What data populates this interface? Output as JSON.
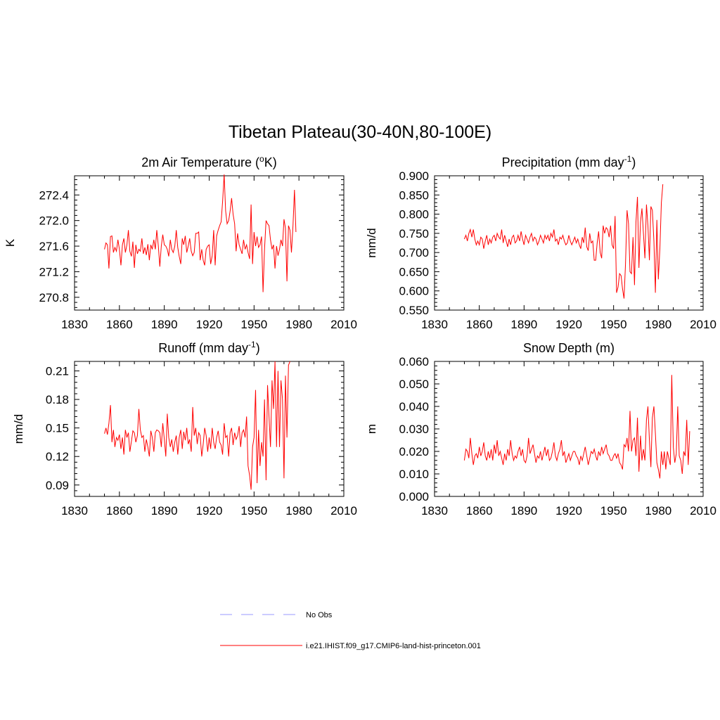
{
  "figure": {
    "title": "Tibetan Plateau(30-40N,80-100E)"
  },
  "legend": {
    "entries": [
      {
        "label": "No Obs",
        "color": "#9999ff",
        "dash": true
      },
      {
        "label": "i.e21.IHIST.f09_g17.CMIP6-land-hist-princeton.001",
        "color": "#ff0000",
        "dash": false
      }
    ]
  },
  "chart_data": [
    {
      "type": "line",
      "title": "2m Air Temperature (°K)",
      "title_parts": [
        "2m Air Temperature (",
        "o",
        "K)"
      ],
      "ylabel": "K",
      "xlim": [
        1830,
        2010
      ],
      "ylim": [
        270.6,
        272.7
      ],
      "xticks": [
        "1830",
        "1860",
        "1890",
        "1920",
        "1950",
        "1980",
        "2010"
      ],
      "yticks": [
        "270.8",
        "271.2",
        "271.6",
        "272.0",
        "272.4"
      ],
      "series": [
        {
          "color": "#ff0000",
          "x_start": 1850,
          "values": [
            271.55,
            271.65,
            271.62,
            271.25,
            271.75,
            271.76,
            271.5,
            271.58,
            271.52,
            271.7,
            271.55,
            271.3,
            271.62,
            271.72,
            271.5,
            271.62,
            271.85,
            271.52,
            271.44,
            271.67,
            271.26,
            271.62,
            271.48,
            271.55,
            271.52,
            271.72,
            271.48,
            271.58,
            271.46,
            271.63,
            271.38,
            271.62,
            271.55,
            271.7,
            271.55,
            271.85,
            271.6,
            271.28,
            271.6,
            271.78,
            271.62,
            271.6,
            271.55,
            271.44,
            271.7,
            271.55,
            271.5,
            271.6,
            271.85,
            271.58,
            271.44,
            271.32,
            271.72,
            271.62,
            271.76,
            271.5,
            271.6,
            271.72,
            271.52,
            271.45,
            271.5,
            271.8,
            271.8,
            271.82,
            271.38,
            271.55,
            271.38,
            271.3,
            271.55,
            271.6,
            271.62,
            271.32,
            271.45,
            271.85,
            271.3,
            271.76,
            271.85,
            271.92,
            271.98,
            272.3,
            272.72,
            272.15,
            271.95,
            272.0,
            272.15,
            272.35,
            272.1,
            271.95,
            271.52,
            271.8,
            271.62,
            271.55,
            271.48,
            271.7,
            271.55,
            271.62,
            271.5,
            271.4,
            272.25,
            271.32,
            271.82,
            271.6,
            271.75,
            271.58,
            271.62,
            271.75,
            270.88,
            271.55,
            272.0,
            271.95,
            271.92,
            271.7,
            271.55,
            271.62,
            271.25,
            271.6,
            271.45,
            271.55,
            271.7,
            271.6,
            272.02,
            271.88,
            271.05,
            271.92,
            271.85,
            271.5,
            271.92,
            272.48,
            271.82
          ]
        }
      ]
    },
    {
      "type": "line",
      "title": "Precipitation (mm day-1)",
      "title_parts": [
        "Precipitation (mm day",
        "-1",
        ")"
      ],
      "ylabel": "mm/d",
      "xlim": [
        1830,
        2010
      ],
      "ylim": [
        0.55,
        0.9
      ],
      "xticks": [
        "1830",
        "1860",
        "1890",
        "1920",
        "1950",
        "1980",
        "2010"
      ],
      "yticks": [
        "0.550",
        "0.600",
        "0.650",
        "0.700",
        "0.750",
        "0.800",
        "0.850",
        "0.900"
      ],
      "series": [
        {
          "color": "#ff0000",
          "x_start": 1850,
          "values": [
            0.735,
            0.745,
            0.73,
            0.75,
            0.76,
            0.74,
            0.76,
            0.735,
            0.72,
            0.73,
            0.72,
            0.74,
            0.735,
            0.71,
            0.73,
            0.745,
            0.72,
            0.735,
            0.725,
            0.74,
            0.745,
            0.73,
            0.75,
            0.74,
            0.735,
            0.76,
            0.725,
            0.745,
            0.73,
            0.715,
            0.735,
            0.72,
            0.74,
            0.745,
            0.725,
            0.73,
            0.745,
            0.73,
            0.755,
            0.735,
            0.72,
            0.745,
            0.735,
            0.725,
            0.74,
            0.75,
            0.73,
            0.74,
            0.735,
            0.72,
            0.73,
            0.745,
            0.735,
            0.725,
            0.745,
            0.735,
            0.745,
            0.73,
            0.75,
            0.74,
            0.76,
            0.73,
            0.735,
            0.72,
            0.74,
            0.735,
            0.745,
            0.73,
            0.72,
            0.725,
            0.745,
            0.73,
            0.72,
            0.73,
            0.74,
            0.725,
            0.735,
            0.72,
            0.71,
            0.74,
            0.725,
            0.765,
            0.715,
            0.705,
            0.75,
            0.725,
            0.73,
            0.68,
            0.68,
            0.725,
            0.755,
            0.7,
            0.685,
            0.77,
            0.75,
            0.765,
            0.76,
            0.74,
            0.77,
            0.72,
            0.71,
            0.795,
            0.595,
            0.61,
            0.645,
            0.64,
            0.605,
            0.58,
            0.67,
            0.81,
            0.775,
            0.65,
            0.645,
            0.74,
            0.615,
            0.78,
            0.845,
            0.66,
            0.78,
            0.815,
            0.75,
            0.685,
            0.825,
            0.77,
            0.68,
            0.82,
            0.81,
            0.73,
            0.595,
            0.785,
            0.63,
            0.71,
            0.83,
            0.878
          ]
        }
      ]
    },
    {
      "type": "line",
      "title": "Runoff (mm day-1)",
      "title_parts": [
        "Runoff (mm day",
        "-1",
        ")"
      ],
      "ylabel": "mm/d",
      "xlim": [
        1830,
        2010
      ],
      "ylim": [
        0.078,
        0.22
      ],
      "xticks": [
        "1830",
        "1860",
        "1890",
        "1920",
        "1950",
        "1980",
        "2010"
      ],
      "yticks": [
        "0.09",
        "0.12",
        "0.15",
        "0.18",
        "0.21"
      ],
      "series": [
        {
          "color": "#ff0000",
          "x_start": 1850,
          "values": [
            0.144,
            0.15,
            0.143,
            0.155,
            0.174,
            0.135,
            0.148,
            0.13,
            0.14,
            0.137,
            0.143,
            0.128,
            0.14,
            0.122,
            0.148,
            0.14,
            0.145,
            0.125,
            0.136,
            0.147,
            0.145,
            0.135,
            0.142,
            0.17,
            0.148,
            0.14,
            0.142,
            0.125,
            0.138,
            0.13,
            0.12,
            0.147,
            0.14,
            0.125,
            0.145,
            0.148,
            0.147,
            0.145,
            0.13,
            0.155,
            0.138,
            0.12,
            0.165,
            0.14,
            0.13,
            0.138,
            0.125,
            0.135,
            0.142,
            0.122,
            0.14,
            0.148,
            0.128,
            0.146,
            0.137,
            0.15,
            0.133,
            0.138,
            0.125,
            0.172,
            0.142,
            0.15,
            0.133,
            0.145,
            0.142,
            0.12,
            0.133,
            0.15,
            0.142,
            0.125,
            0.14,
            0.128,
            0.15,
            0.135,
            0.128,
            0.14,
            0.147,
            0.135,
            0.132,
            0.122,
            0.155,
            0.14,
            0.142,
            0.12,
            0.145,
            0.15,
            0.132,
            0.145,
            0.138,
            0.142,
            0.152,
            0.13,
            0.145,
            0.148,
            0.14,
            0.162,
            0.11,
            0.1,
            0.085,
            0.13,
            0.14,
            0.19,
            0.092,
            0.148,
            0.11,
            0.135,
            0.12,
            0.18,
            0.095,
            0.195,
            0.162,
            0.13,
            0.2,
            0.17,
            0.22,
            0.13,
            0.21,
            0.13,
            0.2,
            0.18,
            0.097,
            0.205,
            0.14,
            0.216,
            0.22
          ]
        }
      ]
    },
    {
      "type": "line",
      "title": "Snow Depth (m)",
      "title_parts": [
        "Snow Depth (m)",
        "",
        ""
      ],
      "ylabel": "m",
      "xlim": [
        1830,
        2010
      ],
      "ylim": [
        0.0,
        0.06
      ],
      "xticks": [
        "1830",
        "1860",
        "1890",
        "1920",
        "1950",
        "1980",
        "2010"
      ],
      "yticks": [
        "0.000",
        "0.010",
        "0.020",
        "0.030",
        "0.040",
        "0.050",
        "0.060"
      ],
      "series": [
        {
          "color": "#ff0000",
          "x_start": 1850,
          "values": [
            0.016,
            0.021,
            0.02,
            0.017,
            0.026,
            0.019,
            0.014,
            0.018,
            0.019,
            0.017,
            0.022,
            0.018,
            0.02,
            0.024,
            0.018,
            0.016,
            0.02,
            0.017,
            0.021,
            0.016,
            0.023,
            0.019,
            0.025,
            0.018,
            0.02,
            0.017,
            0.014,
            0.019,
            0.016,
            0.021,
            0.018,
            0.025,
            0.019,
            0.016,
            0.018,
            0.017,
            0.02,
            0.022,
            0.018,
            0.021,
            0.016,
            0.015,
            0.018,
            0.026,
            0.019,
            0.021,
            0.023,
            0.019,
            0.015,
            0.018,
            0.017,
            0.02,
            0.016,
            0.019,
            0.022,
            0.018,
            0.021,
            0.016,
            0.017,
            0.02,
            0.024,
            0.018,
            0.016,
            0.019,
            0.021,
            0.025,
            0.018,
            0.02,
            0.015,
            0.017,
            0.019,
            0.016,
            0.018,
            0.02,
            0.02,
            0.018,
            0.017,
            0.014,
            0.018,
            0.016,
            0.019,
            0.022,
            0.018,
            0.014,
            0.017,
            0.02,
            0.019,
            0.021,
            0.018,
            0.016,
            0.02,
            0.018,
            0.022,
            0.019,
            0.021,
            0.023,
            0.019,
            0.018,
            0.016,
            0.016,
            0.018,
            0.019,
            0.017,
            0.019,
            0.015,
            0.014,
            0.012,
            0.023,
            0.022,
            0.026,
            0.02,
            0.038,
            0.02,
            0.025,
            0.026,
            0.018,
            0.035,
            0.011,
            0.027,
            0.016,
            0.021,
            0.016,
            0.034,
            0.04,
            0.025,
            0.013,
            0.035,
            0.04,
            0.028,
            0.015,
            0.012,
            0.008,
            0.02,
            0.014,
            0.02,
            0.012,
            0.02,
            0.017,
            0.014,
            0.054,
            0.022,
            0.015,
            0.019,
            0.04,
            0.018,
            0.016,
            0.01,
            0.02,
            0.018,
            0.034,
            0.014,
            0.029
          ]
        }
      ]
    }
  ]
}
